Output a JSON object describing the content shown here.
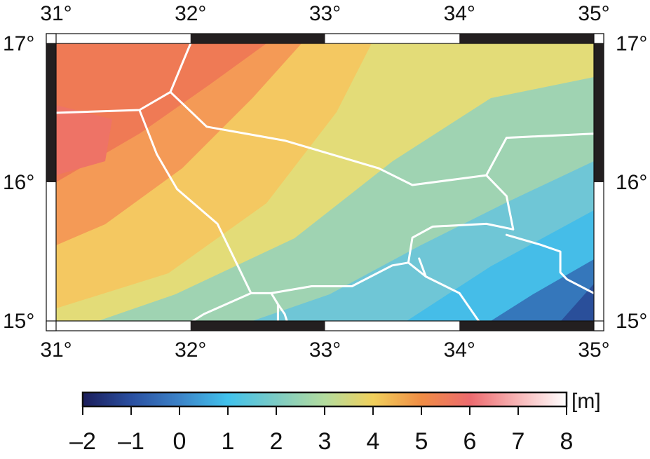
{
  "map": {
    "lon_ticks": [
      {
        "value": 31,
        "label": "31°"
      },
      {
        "value": 32,
        "label": "32°"
      },
      {
        "value": 33,
        "label": "33°"
      },
      {
        "value": 34,
        "label": "34°"
      },
      {
        "value": 35,
        "label": "35°"
      }
    ],
    "lat_ticks": [
      {
        "value": 15,
        "label": "15°"
      },
      {
        "value": 16,
        "label": "16°"
      },
      {
        "value": 17,
        "label": "17°"
      }
    ],
    "extent": {
      "lon": [
        31,
        35
      ],
      "lat": [
        15,
        17
      ]
    },
    "frame_colors": {
      "dark": "#231f20",
      "light": "#ffffff"
    },
    "boundary_color": "#ffffff",
    "boundaries": [
      [
        [
          32.0,
          17.0
        ],
        [
          31.85,
          16.65
        ],
        [
          31.62,
          16.52
        ],
        [
          31.0,
          16.5
        ]
      ],
      [
        [
          31.85,
          16.65
        ],
        [
          32.12,
          16.4
        ],
        [
          32.7,
          16.3
        ],
        [
          33.4,
          16.1
        ],
        [
          33.65,
          15.98
        ],
        [
          34.2,
          16.05
        ],
        [
          34.35,
          16.32
        ],
        [
          35.0,
          16.35
        ]
      ],
      [
        [
          31.62,
          16.52
        ],
        [
          31.75,
          16.2
        ],
        [
          31.9,
          15.95
        ],
        [
          32.2,
          15.7
        ],
        [
          32.35,
          15.4
        ],
        [
          32.45,
          15.2
        ],
        [
          32.6,
          15.2
        ],
        [
          32.9,
          15.25
        ],
        [
          33.2,
          15.25
        ],
        [
          33.5,
          15.4
        ],
        [
          33.62,
          15.42
        ],
        [
          33.75,
          15.32
        ],
        [
          34.0,
          15.2
        ],
        [
          34.15,
          14.99
        ]
      ],
      [
        [
          32.45,
          15.2
        ],
        [
          32.1,
          15.05
        ],
        [
          32.0,
          14.99
        ]
      ],
      [
        [
          32.6,
          15.2
        ],
        [
          32.65,
          15.12
        ],
        [
          32.65,
          14.99
        ]
      ],
      [
        [
          32.65,
          15.12
        ],
        [
          32.7,
          15.05
        ],
        [
          32.72,
          14.99
        ]
      ],
      [
        [
          33.62,
          15.42
        ],
        [
          33.65,
          15.6
        ],
        [
          33.8,
          15.68
        ],
        [
          34.2,
          15.7
        ],
        [
          34.4,
          15.66
        ],
        [
          34.35,
          15.9
        ],
        [
          34.2,
          16.05
        ]
      ],
      [
        [
          33.75,
          15.32
        ],
        [
          33.7,
          15.45
        ]
      ],
      [
        [
          34.35,
          15.62
        ],
        [
          34.6,
          15.55
        ],
        [
          34.75,
          15.5
        ],
        [
          34.75,
          15.35
        ],
        [
          34.8,
          15.3
        ],
        [
          35.0,
          15.2
        ]
      ]
    ]
  },
  "colorbar": {
    "unit_label": "[m]",
    "min": -2,
    "max": 8,
    "ticks": [
      {
        "value": -2,
        "label": "–2"
      },
      {
        "value": -1,
        "label": "–1"
      },
      {
        "value": 0,
        "label": "0"
      },
      {
        "value": 1,
        "label": "1"
      },
      {
        "value": 2,
        "label": "2"
      },
      {
        "value": 3,
        "label": "3"
      },
      {
        "value": 4,
        "label": "4"
      },
      {
        "value": 5,
        "label": "5"
      },
      {
        "value": 6,
        "label": "6"
      },
      {
        "value": 7,
        "label": "7"
      },
      {
        "value": 8,
        "label": "8"
      }
    ],
    "color_stops": [
      {
        "value": -2,
        "color": "#1b1d5a"
      },
      {
        "value": -1,
        "color": "#2a4fa0"
      },
      {
        "value": 0,
        "color": "#3c83c8"
      },
      {
        "value": 1,
        "color": "#41c2ec"
      },
      {
        "value": 2,
        "color": "#7ccbc4"
      },
      {
        "value": 3,
        "color": "#b3dc9e"
      },
      {
        "value": 4,
        "color": "#f1d05c"
      },
      {
        "value": 5,
        "color": "#f08d45"
      },
      {
        "value": 6,
        "color": "#ec6a6e"
      },
      {
        "value": 7,
        "color": "#f8b6b7"
      },
      {
        "value": 8,
        "color": "#ffffff"
      }
    ]
  }
}
